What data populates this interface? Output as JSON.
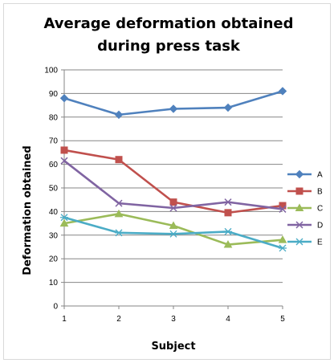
{
  "chart_data": {
    "type": "line",
    "title_lines": [
      "Average deformation obtained",
      "during press task"
    ],
    "xlabel": "Subject",
    "ylabel": "Deformation obtained",
    "x": [
      1,
      2,
      3,
      4,
      5
    ],
    "ylim": [
      0,
      100
    ],
    "yticks": [
      0,
      10,
      20,
      30,
      40,
      50,
      60,
      70,
      80,
      90,
      100
    ],
    "grid": true,
    "legend_position": "right",
    "series": [
      {
        "name": "A",
        "values": [
          88,
          81,
          83.5,
          84,
          91
        ],
        "color": "#4f81bd",
        "marker": "diamond"
      },
      {
        "name": "B",
        "values": [
          66,
          62,
          44,
          39.5,
          42.5
        ],
        "color": "#c0504d",
        "marker": "square"
      },
      {
        "name": "C",
        "values": [
          35,
          39,
          34,
          26,
          28
        ],
        "color": "#9bbb59",
        "marker": "triangle"
      },
      {
        "name": "D",
        "values": [
          61.5,
          43.5,
          41.5,
          44,
          41
        ],
        "color": "#8064a2",
        "marker": "x"
      },
      {
        "name": "E",
        "values": [
          37.5,
          31,
          30.5,
          31.5,
          24.5
        ],
        "color": "#4bacc6",
        "marker": "asterisk"
      }
    ]
  }
}
